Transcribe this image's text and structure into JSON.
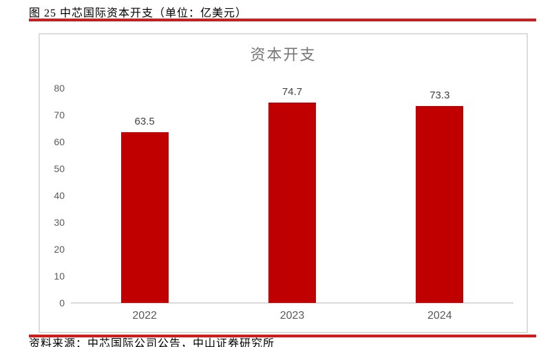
{
  "header": {
    "caption": "图 25 中芯国际资本开支（单位：亿美元）"
  },
  "footer": {
    "source": "资料来源：中芯国际公司公告，中山证券研究所"
  },
  "colors": {
    "bar_red": "#c00000",
    "divider_red": "#e31b1b",
    "divider_dark": "#a50b0b",
    "chart_border": "#dcdcdc",
    "axis_gray": "#d9d9d9",
    "tick_gray": "#595959",
    "data_label_gray": "#404040",
    "title_gray": "#757575"
  },
  "chart_data": {
    "type": "bar",
    "title": "资本开支",
    "categories": [
      "2022",
      "2023",
      "2024"
    ],
    "values": [
      63.5,
      74.7,
      73.3
    ],
    "data_labels": [
      "63.5",
      "74.7",
      "73.3"
    ],
    "xlabel": "",
    "ylabel": "",
    "ylim": [
      0,
      80
    ],
    "yticks": [
      0,
      10,
      20,
      30,
      40,
      50,
      60,
      70,
      80
    ],
    "ytick_step": 10,
    "grid": false,
    "legend": false,
    "bar_color": "#c00000"
  }
}
